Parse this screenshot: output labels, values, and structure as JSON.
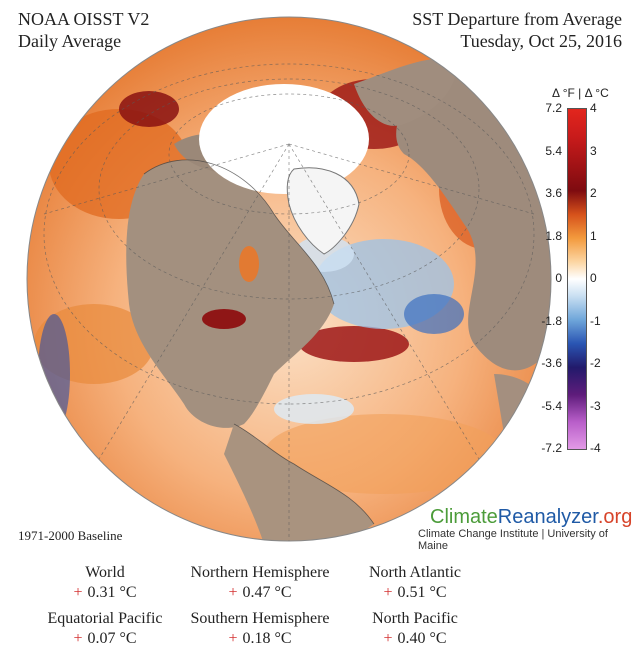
{
  "header": {
    "source_line1": "NOAA OISST V2",
    "source_line2": "Daily Average",
    "title_line1": "SST Departure from Average",
    "title_line2": "Tuesday, Oct 25, 2016"
  },
  "colorbar": {
    "units_label": "Δ °F  |  Δ °C",
    "fahrenheit_ticks": [
      "7.2",
      "5.4",
      "3.6",
      "1.8",
      "0",
      "-1.8",
      "-3.6",
      "-5.4",
      "-7.2"
    ],
    "celsius_ticks": [
      "4",
      "3",
      "2",
      "1",
      "0",
      "-1",
      "-2",
      "-3",
      "-4"
    ],
    "colors": {
      "warm_max": "#e2261d",
      "warm_dark": "#7e0b10",
      "warm_mid": "#f39a3d",
      "neutral": "#ffffff",
      "cool_mid": "#6fa6da",
      "cool_dark": "#221a6b",
      "cool_min": "#e29ae6"
    }
  },
  "baseline_label": "1971-2000 Baseline",
  "branding": {
    "name_part1": "Climate",
    "name_part2": "Reanalyzer",
    "name_part3": ".org",
    "subtitle": "Climate Change Institute | University of Maine"
  },
  "stats": [
    {
      "label": "World",
      "sign": "+",
      "value": "0.31 °C"
    },
    {
      "label": "Northern Hemisphere",
      "sign": "+",
      "value": "0.47 °C"
    },
    {
      "label": "North Atlantic",
      "sign": "+",
      "value": "0.51 °C"
    },
    {
      "label": "Equatorial Pacific",
      "sign": "+",
      "value": "0.07 °C"
    },
    {
      "label": "Southern Hemisphere",
      "sign": "+",
      "value": "0.18 °C"
    },
    {
      "label": "North Pacific",
      "sign": "+",
      "value": "0.40 °C"
    }
  ]
}
